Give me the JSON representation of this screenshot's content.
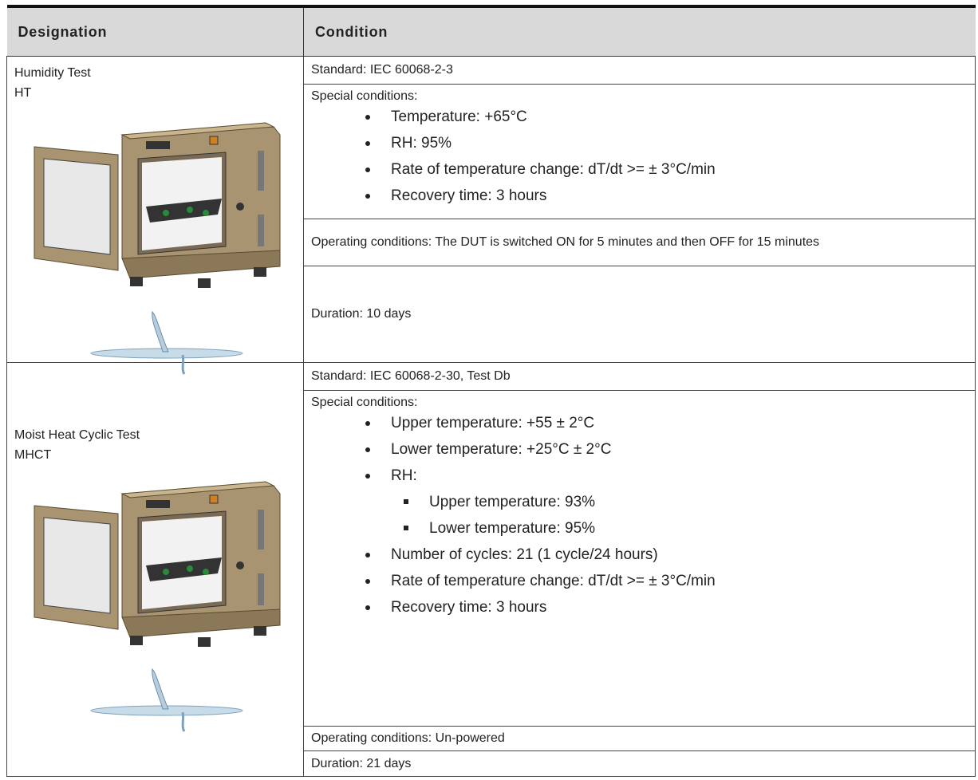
{
  "table": {
    "header": [
      "Designation",
      "Condition"
    ],
    "rows": [
      {
        "designation": {
          "name": "Humidity Test",
          "code": "HT"
        },
        "standard": "Standard: IEC 60068-2-3",
        "special_label": "Special conditions:",
        "items": [
          {
            "text": "Temperature: +65°C"
          },
          {
            "text": "RH: 95%"
          },
          {
            "text": "Rate of temperature change: dT/dt >= ± 3°C/min"
          },
          {
            "text": "Recovery time: 3 hours"
          }
        ],
        "operating": "Operating conditions: The DUT is switched ON for 5 minutes and then OFF for 15 minutes",
        "duration": "Duration: 10 days"
      },
      {
        "designation": {
          "name": "Moist Heat Cyclic Test",
          "code": "MHCT"
        },
        "standard": "Standard: IEC 60068-2-30, Test Db",
        "special_label": "Special conditions:",
        "items": [
          {
            "text": "Upper temperature: +55 ± 2°C"
          },
          {
            "text": "Lower temperature: +25°C ± 2°C"
          },
          {
            "text": "RH:",
            "sub": [
              "Upper temperature: 93%",
              "Lower temperature: 95%"
            ]
          },
          {
            "text": "Number of cycles: 21 (1 cycle/24 hours)"
          },
          {
            "text": "Rate of temperature change: dT/dt >= ± 3°C/min"
          },
          {
            "text": "Recovery time: 3 hours"
          }
        ],
        "operating": "Operating conditions: Un-powered",
        "duration": "Duration: 21 days"
      }
    ]
  }
}
